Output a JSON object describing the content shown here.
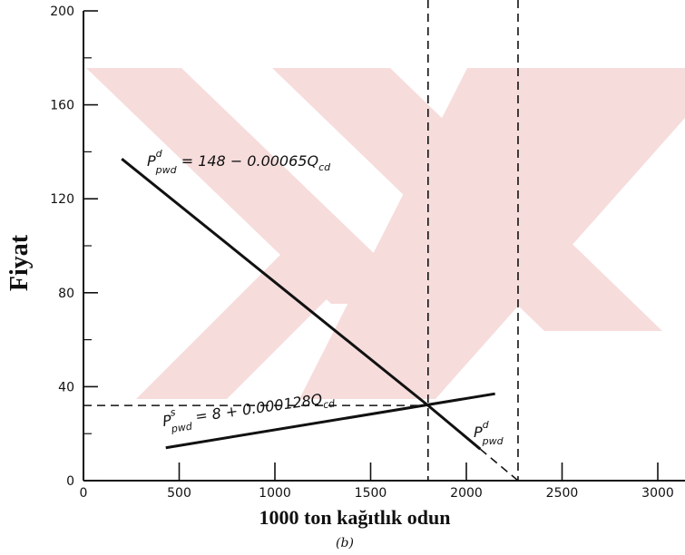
{
  "chart_data": {
    "type": "line",
    "ylabel": "Fiyat",
    "xlabel": "1000 ton kağıtlık odun",
    "sublabel": "(b)",
    "xlim": [
      0,
      3000
    ],
    "ylim": [
      0,
      200
    ],
    "x_ticks": [
      0,
      500,
      1000,
      1500,
      2000,
      2500,
      3000
    ],
    "y_ticks": [
      0,
      40,
      80,
      120,
      160,
      200
    ],
    "series": [
      {
        "label_parts": {
          "base": "P",
          "sup": "d",
          "sub": "pwd",
          "rest": " = 148 − 0.00065Q",
          "rest_sub": "cd"
        },
        "x": [
          200,
          1800
        ],
        "y": [
          137,
          32
        ],
        "style": "solid"
      },
      {
        "label_parts": {
          "base": "P",
          "sup": "d",
          "sub": "pwd",
          "rest": "",
          "rest_sub": ""
        },
        "x": [
          1800,
          2270
        ],
        "y": [
          32,
          0
        ],
        "style": "solid-then-dashed"
      },
      {
        "label_parts": {
          "base": "P",
          "sup": "s",
          "sub": "pwd",
          "rest": " = 8 + 0.000128Q",
          "rest_sub": "cd"
        },
        "x": [
          430,
          2150
        ],
        "y": [
          14,
          37
        ],
        "style": "solid"
      }
    ],
    "reference_lines": {
      "vertical_x": [
        1800,
        2270
      ],
      "horizontal_y": [
        32
      ]
    },
    "grid": false
  }
}
